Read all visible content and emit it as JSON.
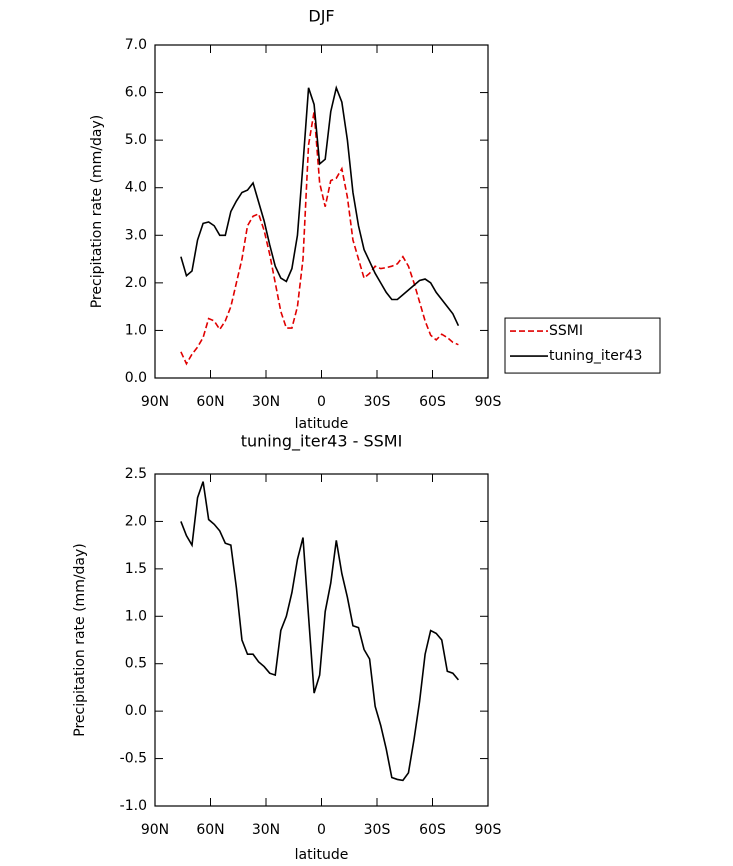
{
  "chart_data": [
    {
      "type": "line",
      "title": "DJF",
      "xlabel": "latitude",
      "ylabel": "Precipitation rate (mm/day)",
      "xlim": [
        90,
        -90
      ],
      "xticks": [
        {
          "value": 90,
          "label": "90N"
        },
        {
          "value": 60,
          "label": "60N"
        },
        {
          "value": 30,
          "label": "30N"
        },
        0,
        {
          "value": -30,
          "label": "30S"
        },
        {
          "value": -60,
          "label": "60S"
        },
        {
          "value": -90,
          "label": "90S"
        }
      ],
      "ylim": [
        0,
        7
      ],
      "yticks": [
        {
          "value": 0,
          "label": "0.0"
        },
        {
          "value": 1,
          "label": "1.0"
        },
        {
          "value": 2,
          "label": "2.0"
        },
        {
          "value": 3,
          "label": "3.0"
        },
        {
          "value": 4,
          "label": "4.0"
        },
        {
          "value": 5,
          "label": "5.0"
        },
        {
          "value": 6,
          "label": "6.0"
        },
        {
          "value": 7,
          "label": "7.0"
        }
      ],
      "legend": "right",
      "x": [
        76,
        73,
        70,
        67,
        64,
        61,
        58,
        55,
        52,
        49,
        46,
        43,
        40,
        37,
        34,
        31,
        28,
        25,
        22,
        19,
        16,
        13,
        10,
        7,
        4,
        1,
        -2,
        -5,
        -8,
        -11,
        -14,
        -17,
        -20,
        -23,
        -26,
        -29,
        -32,
        -35,
        -38,
        -41,
        -44,
        -47,
        -50,
        -53,
        -56,
        -59,
        -62,
        -65,
        -68,
        -71,
        -74
      ],
      "series": [
        {
          "name": "SSMI",
          "color": "#e00000",
          "dashed": true,
          "values": [
            0.55,
            0.3,
            0.5,
            0.65,
            0.85,
            1.25,
            1.2,
            1.02,
            1.2,
            1.5,
            2.0,
            2.5,
            3.2,
            3.4,
            3.45,
            3.1,
            2.6,
            2.0,
            1.4,
            1.05,
            1.05,
            1.5,
            2.5,
            4.9,
            5.6,
            4.1,
            3.6,
            4.15,
            4.2,
            4.4,
            3.8,
            2.9,
            2.5,
            2.1,
            2.2,
            2.35,
            2.3,
            2.32,
            2.35,
            2.4,
            2.55,
            2.35,
            2.0,
            1.6,
            1.2,
            0.9,
            0.8,
            0.92,
            0.85,
            0.75,
            0.7
          ]
        },
        {
          "name": "tuning_iter43",
          "color": "#000000",
          "dashed": false,
          "values": [
            2.55,
            2.15,
            2.25,
            2.9,
            3.25,
            3.28,
            3.2,
            3.0,
            3.0,
            3.5,
            3.72,
            3.9,
            3.95,
            4.1,
            3.7,
            3.3,
            2.8,
            2.35,
            2.1,
            2.03,
            2.3,
            3.0,
            4.5,
            6.1,
            5.75,
            4.5,
            4.6,
            5.6,
            6.1,
            5.8,
            5.0,
            3.9,
            3.2,
            2.7,
            2.45,
            2.2,
            2.0,
            1.8,
            1.65,
            1.65,
            1.75,
            1.85,
            1.95,
            2.05,
            2.08,
            2.0,
            1.8,
            1.65,
            1.5,
            1.35,
            1.1
          ]
        }
      ]
    },
    {
      "type": "line",
      "title": "tuning_iter43 - SSMI",
      "xlabel": "latitude",
      "ylabel": "Precipitation rate (mm/day)",
      "xlim": [
        90,
        -90
      ],
      "xticks": [
        {
          "value": 90,
          "label": "90N"
        },
        {
          "value": 60,
          "label": "60N"
        },
        {
          "value": 30,
          "label": "30N"
        },
        0,
        {
          "value": -30,
          "label": "30S"
        },
        {
          "value": -60,
          "label": "60S"
        },
        {
          "value": -90,
          "label": "90S"
        }
      ],
      "ylim": [
        -1,
        2.5
      ],
      "yticks": [
        {
          "value": -1,
          "label": "-1.0"
        },
        -0.5,
        {
          "value": 0,
          "label": "0.0"
        },
        0.5,
        {
          "value": 1,
          "label": "1.0"
        },
        1.5,
        {
          "value": 2,
          "label": "2.0"
        },
        2.5
      ],
      "color": "#000000",
      "x": [
        76,
        73,
        70,
        67,
        64,
        61,
        58,
        55,
        52,
        49,
        46,
        43,
        40,
        37,
        34,
        31,
        28,
        25,
        22,
        19,
        16,
        13,
        10,
        7,
        4,
        1,
        -2,
        -5,
        -8,
        -11,
        -14,
        -17,
        -20,
        -23,
        -26,
        -29,
        -32,
        -35,
        -38,
        -41,
        -44,
        -47,
        -50,
        -53,
        -56,
        -59,
        -62,
        -65,
        -68,
        -71,
        -74
      ],
      "values": [
        2.0,
        1.85,
        1.75,
        2.25,
        2.42,
        2.02,
        1.97,
        1.9,
        1.77,
        1.75,
        1.3,
        0.75,
        0.6,
        0.6,
        0.52,
        0.47,
        0.4,
        0.38,
        0.85,
        1.0,
        1.25,
        1.6,
        1.83,
        1.0,
        0.19,
        0.38,
        1.05,
        1.35,
        1.8,
        1.45,
        1.2,
        0.9,
        0.88,
        0.65,
        0.55,
        0.05,
        -0.15,
        -0.4,
        -0.7,
        -0.72,
        -0.73,
        -0.65,
        -0.3,
        0.1,
        0.6,
        0.85,
        0.82,
        0.75,
        0.42,
        0.4,
        0.33
      ]
    }
  ]
}
